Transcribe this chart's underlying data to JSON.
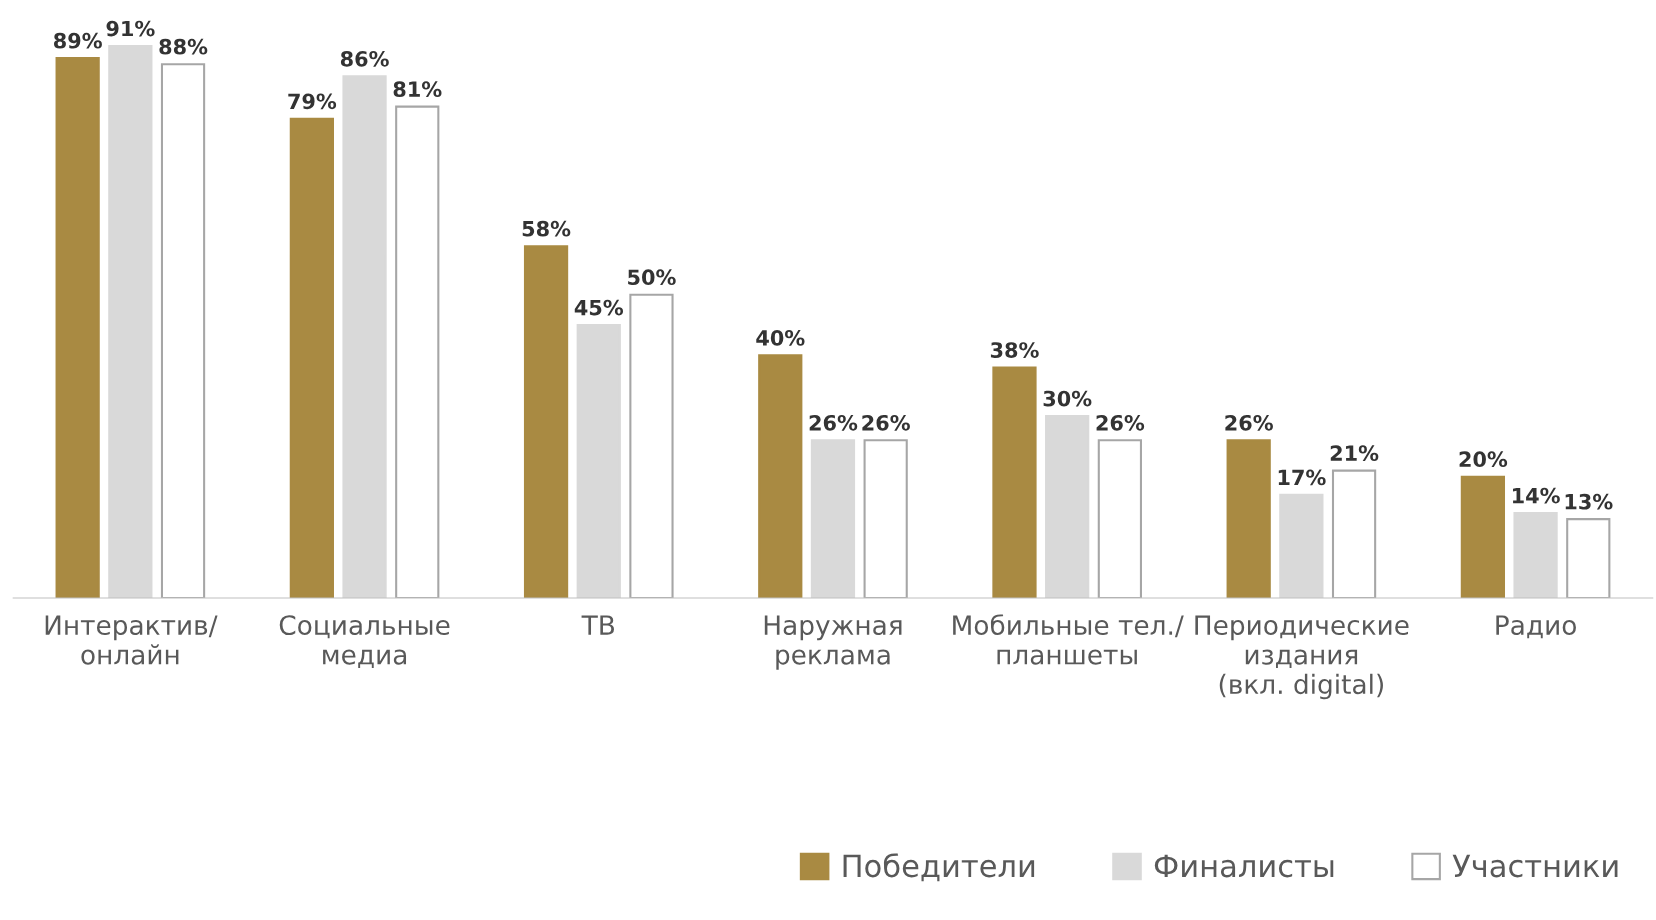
{
  "chart_data": {
    "type": "bar",
    "categories": [
      "Интерактив/\nонлайн",
      "Социальные\nмедиа",
      "ТВ",
      "Наружная\nреклама",
      "Мобильные тел./\nпланшеты",
      "Периодические\nиздания\n(вкл. digital)",
      "Радио"
    ],
    "series": [
      {
        "name": "Победители",
        "color": "#a98a42",
        "values": [
          89,
          79,
          58,
          40,
          38,
          26,
          20
        ],
        "value_labels": [
          "89%",
          "79%",
          "58%",
          "40%",
          "38%",
          "26%",
          "20%"
        ]
      },
      {
        "name": "Финалисты",
        "color": "#d9d9d9",
        "values": [
          91,
          86,
          45,
          26,
          30,
          17,
          14
        ],
        "value_labels": [
          "91%",
          "86%",
          "45%",
          "26%",
          "30%",
          "17%",
          "14%"
        ]
      },
      {
        "name": "Участники",
        "color": "#ffffff",
        "values": [
          88,
          81,
          50,
          26,
          26,
          21,
          13
        ],
        "value_labels": [
          "88%",
          "81%",
          "50%",
          "26%",
          "26%",
          "21%",
          "13%"
        ]
      }
    ],
    "tick_labels": "x",
    "legend": "bottom right",
    "grid": false
  }
}
